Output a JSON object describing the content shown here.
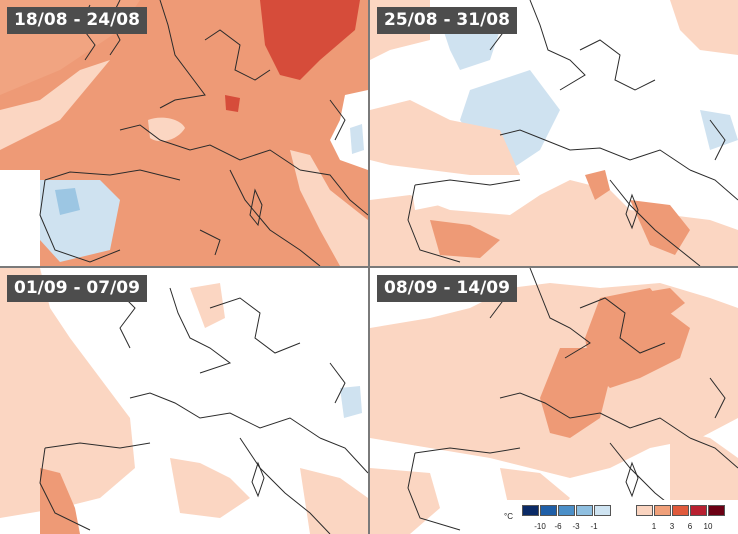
{
  "panels": [
    {
      "label": "18/08 - 24/08",
      "anomaly": "warm"
    },
    {
      "label": "25/08 - 31/08",
      "anomaly": "mixed"
    },
    {
      "label": "01/09 - 07/09",
      "anomaly": "neutral"
    },
    {
      "label": "08/09 - 14/09",
      "anomaly": "warm"
    }
  ],
  "legend": {
    "unit": "°C",
    "negative_ticks": [
      "-10",
      "-6",
      "-3",
      "-1"
    ],
    "positive_ticks": [
      "1",
      "3",
      "6",
      "10"
    ],
    "cold_colors": [
      "#0a2a66",
      "#1f5fa8",
      "#4b8fc8",
      "#8fbfe0",
      "#cfe4f2"
    ],
    "warm_colors": [
      "#fad4c0",
      "#f0a07a",
      "#e05a3c",
      "#b82030",
      "#6b0014"
    ]
  },
  "colors": {
    "land_neutral": "#ffffff",
    "warm_1": "#fbd6c2",
    "warm_2": "#ee9a76",
    "warm_3": "#d64c3a",
    "cool_1": "#cfe2f0",
    "border": "#2b2b2b",
    "label_bg": "#4d4d4d"
  }
}
